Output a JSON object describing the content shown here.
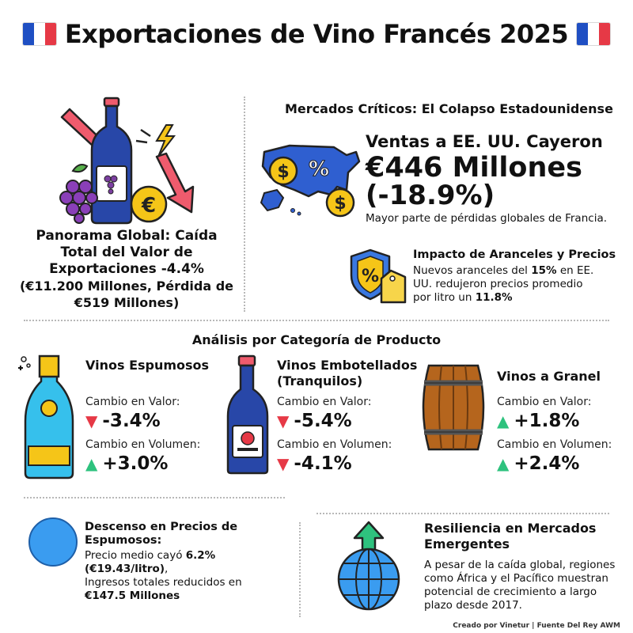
{
  "header": {
    "title": "Exportaciones de Vino Francés 2025"
  },
  "overview": {
    "title": "Panorama Global: Caída Total del Valor de Exportaciones -4.4%",
    "detail": "(€11.200 Millones, Pérdida de €519 Millones)"
  },
  "markets": {
    "heading": "Mercados Críticos: El Colapso Estadounidense",
    "us_label": "Ventas a EE. UU. Cayeron",
    "us_amount": "€446 Millones",
    "us_change": "(-18.9%)",
    "us_note": "Mayor parte de pérdidas globales de Francia.",
    "tariff_title": "Impacto de Aranceles y Precios",
    "tariff_text_1": "Nuevos aranceles del ",
    "tariff_bold_1": "15%",
    "tariff_text_2": " en EE. UU. redujeron precios promedio por litro un ",
    "tariff_bold_2": "11.8%"
  },
  "categories": {
    "heading": "Análisis por Categoría de Producto",
    "value_label": "Cambio en Valor:",
    "volume_label": "Cambio en Volumen:",
    "items": [
      {
        "name": "Vinos Espumosos",
        "value_change": "-3.4%",
        "value_dir": "down",
        "volume_change": "+3.0%",
        "volume_dir": "up"
      },
      {
        "name": "Vinos Embotellados (Tranquilos)",
        "value_change": "-5.4%",
        "value_dir": "down",
        "volume_change": "-4.1%",
        "volume_dir": "down"
      },
      {
        "name": "Vinos a Granel",
        "value_change": "+1.8%",
        "value_dir": "up",
        "volume_change": "+2.4%",
        "volume_dir": "up"
      }
    ]
  },
  "sparkling_prices": {
    "title": "Descenso en Precios de Espumosos:",
    "text_1": "Precio medio cayó ",
    "bold_1": "6.2%",
    "bold_2": "(€19.43/litro)",
    "text_2": ",",
    "text_3": "Ingresos totales reducidos en ",
    "bold_3": "€147.5 Millones"
  },
  "emerging": {
    "title": "Resiliencia en Mercados Emergentes",
    "text": "A pesar de la caída global, regiones como África y el Pacífico muestran potencial de crecimiento a largo plazo desde 2017."
  },
  "footer": {
    "credit": "Creado por Vinetur | Fuente Del Rey AWM"
  },
  "icons": {
    "flag": "french-flag-icon",
    "down": "red-down-arrow-icon",
    "up": "green-up-arrow-icon"
  },
  "colors": {
    "down": "#e63946",
    "up": "#2ec27e",
    "blue": "#1f4fc3",
    "gold": "#f5c518"
  }
}
